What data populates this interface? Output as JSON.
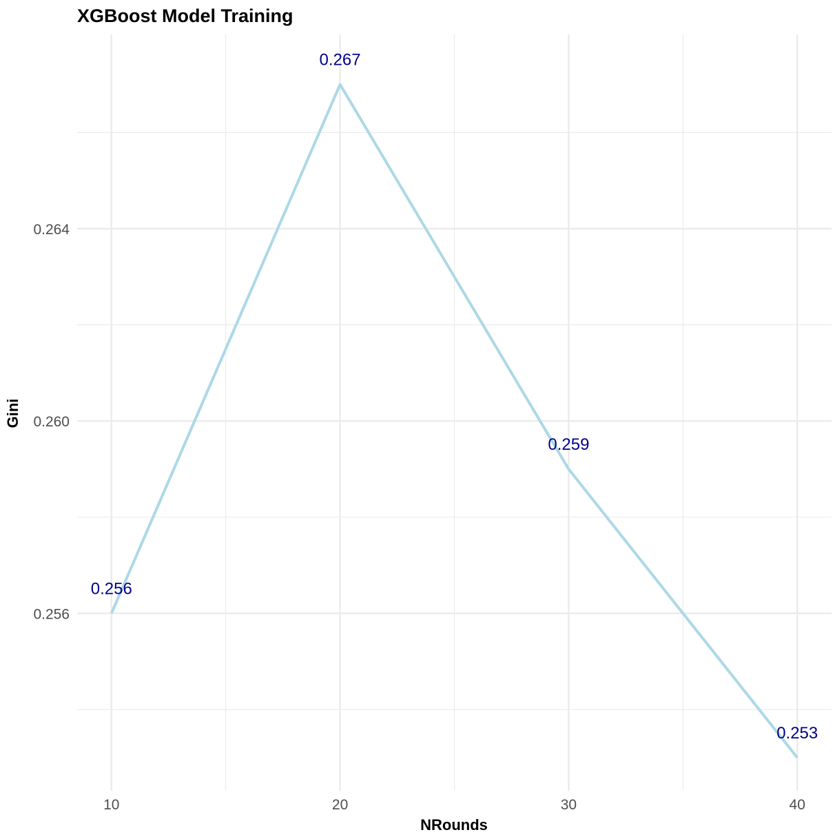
{
  "chart_data": {
    "type": "line",
    "title": "XGBoost Model Training",
    "xlabel": "NRounds",
    "ylabel": "Gini",
    "x": [
      10,
      20,
      30,
      40
    ],
    "values": [
      0.256,
      0.267,
      0.259,
      0.253
    ],
    "data_labels": [
      "0.256",
      "0.267",
      "0.259",
      "0.253"
    ],
    "x_ticks": [
      10,
      20,
      30,
      40
    ],
    "x_tick_labels": [
      "10",
      "20",
      "30",
      "40"
    ],
    "y_ticks": [
      0.256,
      0.26,
      0.264
    ],
    "y_tick_labels": [
      "0.256",
      "0.260",
      "0.264"
    ],
    "x_minor_ticks": [
      15,
      25,
      35
    ],
    "y_minor_ticks": [
      0.254,
      0.258,
      0.262,
      0.266
    ],
    "xlim": [
      8.5,
      41.5
    ],
    "ylim": [
      0.25231,
      0.26804
    ],
    "grid": true,
    "legend": "none",
    "colors": {
      "line": "#ADD8E6",
      "label": "#00008B",
      "grid": "#EBEBEB"
    }
  }
}
